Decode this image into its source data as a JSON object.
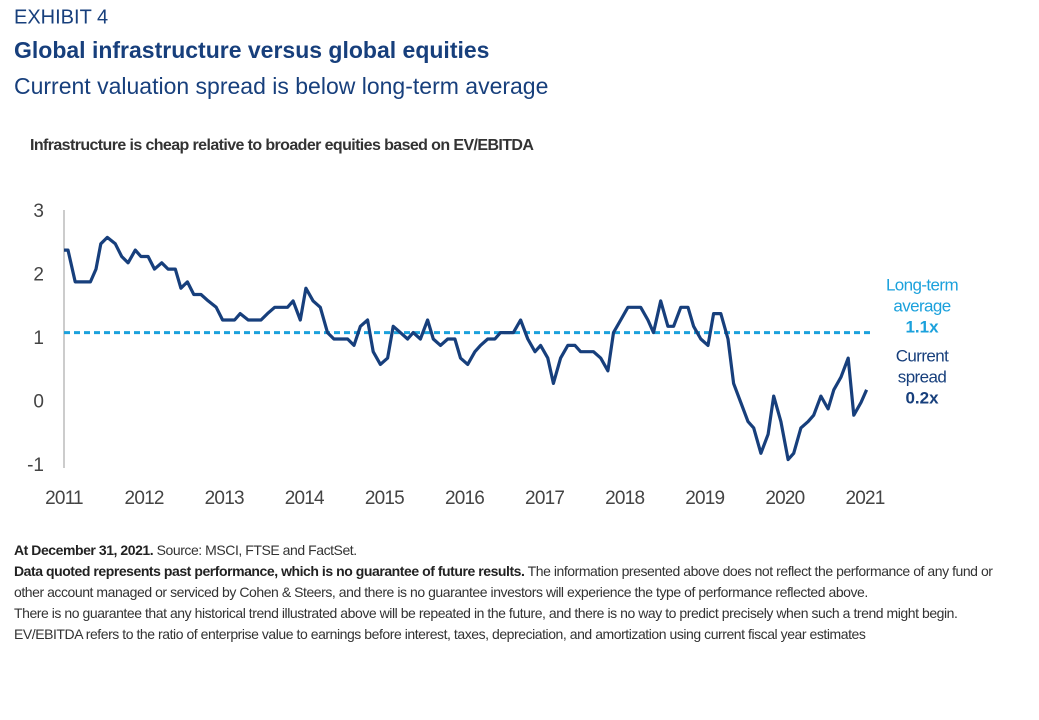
{
  "exhibit": "EXHIBIT 4",
  "title": "Global infrastructure versus global equities",
  "subtitle": "Current valuation spread is below long-term average",
  "chart_data": {
    "type": "line",
    "title": "Infrastructure is cheap relative to broader equities based on EV/EBITDA",
    "x": [
      2011.0,
      2011.05,
      2011.14,
      2011.33,
      2011.4,
      2011.46,
      2011.54,
      2011.64,
      2011.72,
      2011.8,
      2011.89,
      2011.96,
      2012.05,
      2012.13,
      2012.22,
      2012.3,
      2012.39,
      2012.46,
      2012.54,
      2012.62,
      2012.71,
      2012.8,
      2012.9,
      2012.98,
      2013.13,
      2013.2,
      2013.3,
      2013.46,
      2013.54,
      2013.63,
      2013.79,
      2013.86,
      2013.95,
      2014.02,
      2014.11,
      2014.2,
      2014.29,
      2014.37,
      2014.54,
      2014.62,
      2014.7,
      2014.79,
      2014.86,
      2014.95,
      2015.04,
      2015.11,
      2015.2,
      2015.29,
      2015.36,
      2015.45,
      2015.54,
      2015.61,
      2015.7,
      2015.79,
      2015.88,
      2015.95,
      2016.04,
      2016.13,
      2016.2,
      2016.29,
      2016.38,
      2016.45,
      2016.61,
      2016.7,
      2016.79,
      2016.88,
      2016.95,
      2017.04,
      2017.11,
      2017.2,
      2017.29,
      2017.38,
      2017.45,
      2017.61,
      2017.7,
      2017.79,
      2017.86,
      2017.95,
      2018.04,
      2018.2,
      2018.29,
      2018.36,
      2018.45,
      2018.54,
      2018.61,
      2018.7,
      2018.79,
      2018.86,
      2018.95,
      2019.04,
      2019.11,
      2019.2,
      2019.29,
      2019.36,
      2019.45,
      2019.54,
      2019.61,
      2019.7,
      2019.79,
      2019.86,
      2019.95,
      2020.04,
      2020.11,
      2020.2,
      2020.29,
      2020.36,
      2020.45,
      2020.54,
      2020.61,
      2020.7,
      2020.79,
      2020.86,
      2020.95,
      2021.02
    ],
    "series": [
      {
        "color": "#173f7c",
        "values": [
          2.4,
          2.4,
          1.9,
          1.9,
          2.1,
          2.5,
          2.6,
          2.5,
          2.3,
          2.2,
          2.4,
          2.3,
          2.3,
          2.1,
          2.2,
          2.1,
          2.1,
          1.8,
          1.9,
          1.7,
          1.7,
          1.6,
          1.5,
          1.3,
          1.3,
          1.4,
          1.3,
          1.3,
          1.4,
          1.5,
          1.5,
          1.6,
          1.3,
          1.8,
          1.6,
          1.5,
          1.1,
          1.0,
          1.0,
          0.9,
          1.2,
          1.3,
          0.8,
          0.6,
          0.7,
          1.2,
          1.1,
          1.0,
          1.1,
          1.0,
          1.3,
          1.0,
          0.9,
          1.0,
          1.0,
          0.7,
          0.6,
          0.8,
          0.9,
          1.0,
          1.0,
          1.1,
          1.1,
          1.3,
          1.0,
          0.8,
          0.9,
          0.7,
          0.3,
          0.7,
          0.9,
          0.9,
          0.8,
          0.8,
          0.7,
          0.5,
          1.1,
          1.3,
          1.5,
          1.5,
          1.3,
          1.1,
          1.6,
          1.2,
          1.2,
          1.5,
          1.5,
          1.2,
          1.0,
          0.9,
          1.4,
          1.4,
          1.0,
          0.3,
          0.0,
          -0.3,
          -0.4,
          -0.8,
          -0.5,
          0.1,
          -0.3,
          -0.9,
          -0.8,
          -0.4,
          -0.3,
          -0.2,
          0.1,
          -0.1,
          0.2,
          0.4,
          0.7,
          -0.2,
          0.0,
          0.2
        ]
      }
    ],
    "xlim": [
      2011,
      2021.1
    ],
    "xticks": [
      2011,
      2012,
      2013,
      2014,
      2015,
      2016,
      2017,
      2018,
      2019,
      2020,
      2021
    ],
    "ylim": [
      -1,
      3
    ],
    "yticks": [
      -1,
      0,
      1,
      2,
      3
    ],
    "reference_line": {
      "value": 1.1,
      "color": "#1ba1dc",
      "lines": [
        "Long-term",
        "average"
      ],
      "value_label": "1.1x"
    },
    "current": {
      "value": 0.2,
      "color": "#173f7c",
      "lines": [
        "Current",
        "spread"
      ],
      "value_label": "0.2x"
    }
  },
  "footer": [
    [
      {
        "bold": true,
        "text": "At December 31, 2021."
      },
      {
        "bold": false,
        "text": " Source: MSCI, FTSE and FactSet."
      }
    ],
    [
      {
        "bold": true,
        "text": "Data quoted represents past performance, which is no guarantee of future results."
      },
      {
        "bold": false,
        "text": " The information presented above does not reflect the performance of any fund or other account managed or serviced by Cohen & Steers, and there is no guarantee investors will experience the type of performance reflected above."
      }
    ],
    [
      {
        "bold": false,
        "text": "There is no guarantee that any historical trend illustrated above will be repeated in the future, and there is no way to predict precisely when such a trend might begin. EV/EBITDA refers to the ratio of enterprise value to earnings before interest, taxes, depreciation, and amortization using current fiscal year estimates"
      }
    ]
  ]
}
